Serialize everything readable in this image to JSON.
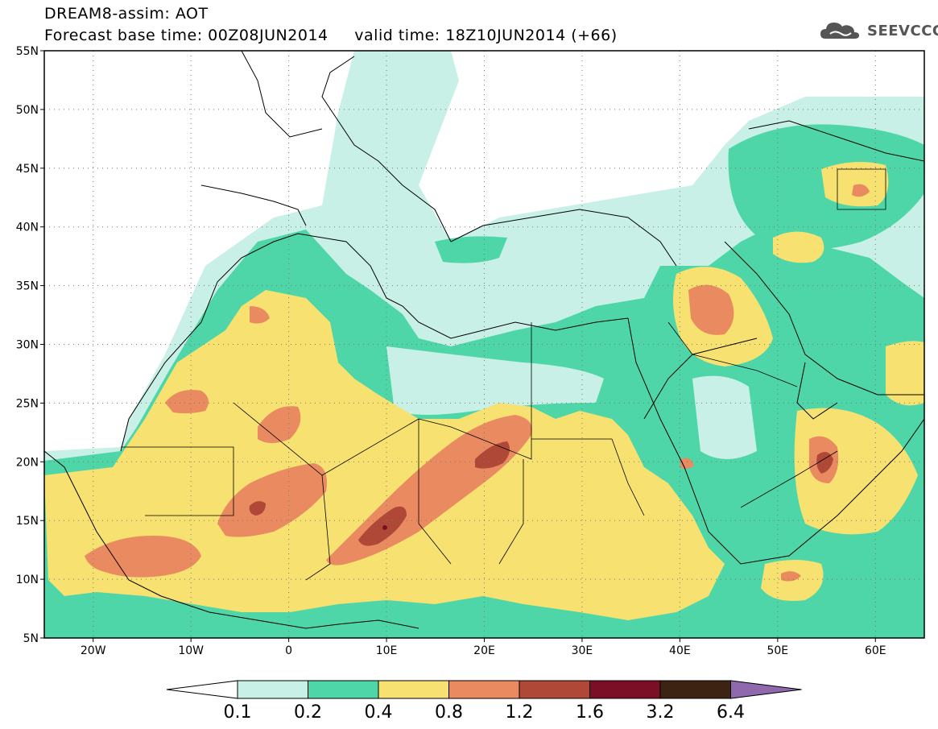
{
  "title": {
    "line1": "DREAM8-assim: AOT",
    "line2_base": "Forecast base time: 00Z08JUN2014",
    "line2_valid": "valid time: 18Z10JUN2014 (+66)"
  },
  "logo": {
    "text": "SEEVCCC",
    "icon": "cloud-logo-icon"
  },
  "map": {
    "lon_range": [
      -25,
      65
    ],
    "lat_range": [
      5,
      55
    ],
    "lat_ticks": [
      "5N",
      "10N",
      "15N",
      "20N",
      "25N",
      "30N",
      "35N",
      "40N",
      "45N",
      "50N",
      "55N"
    ],
    "lon_ticks": [
      "20W",
      "10W",
      "0",
      "10E",
      "20E",
      "30E",
      "40E",
      "50E",
      "60E"
    ],
    "grid": "dotted"
  },
  "colorbar": {
    "labels": [
      "0.1",
      "0.2",
      "0.4",
      "0.8",
      "1.2",
      "1.6",
      "3.2",
      "6.4"
    ],
    "colors": [
      "#ffffff",
      "#c8f0e6",
      "#4fd6a8",
      "#f7e170",
      "#e98a60",
      "#b04838",
      "#7a0f26",
      "#3d2412",
      "#9068ae"
    ]
  }
}
